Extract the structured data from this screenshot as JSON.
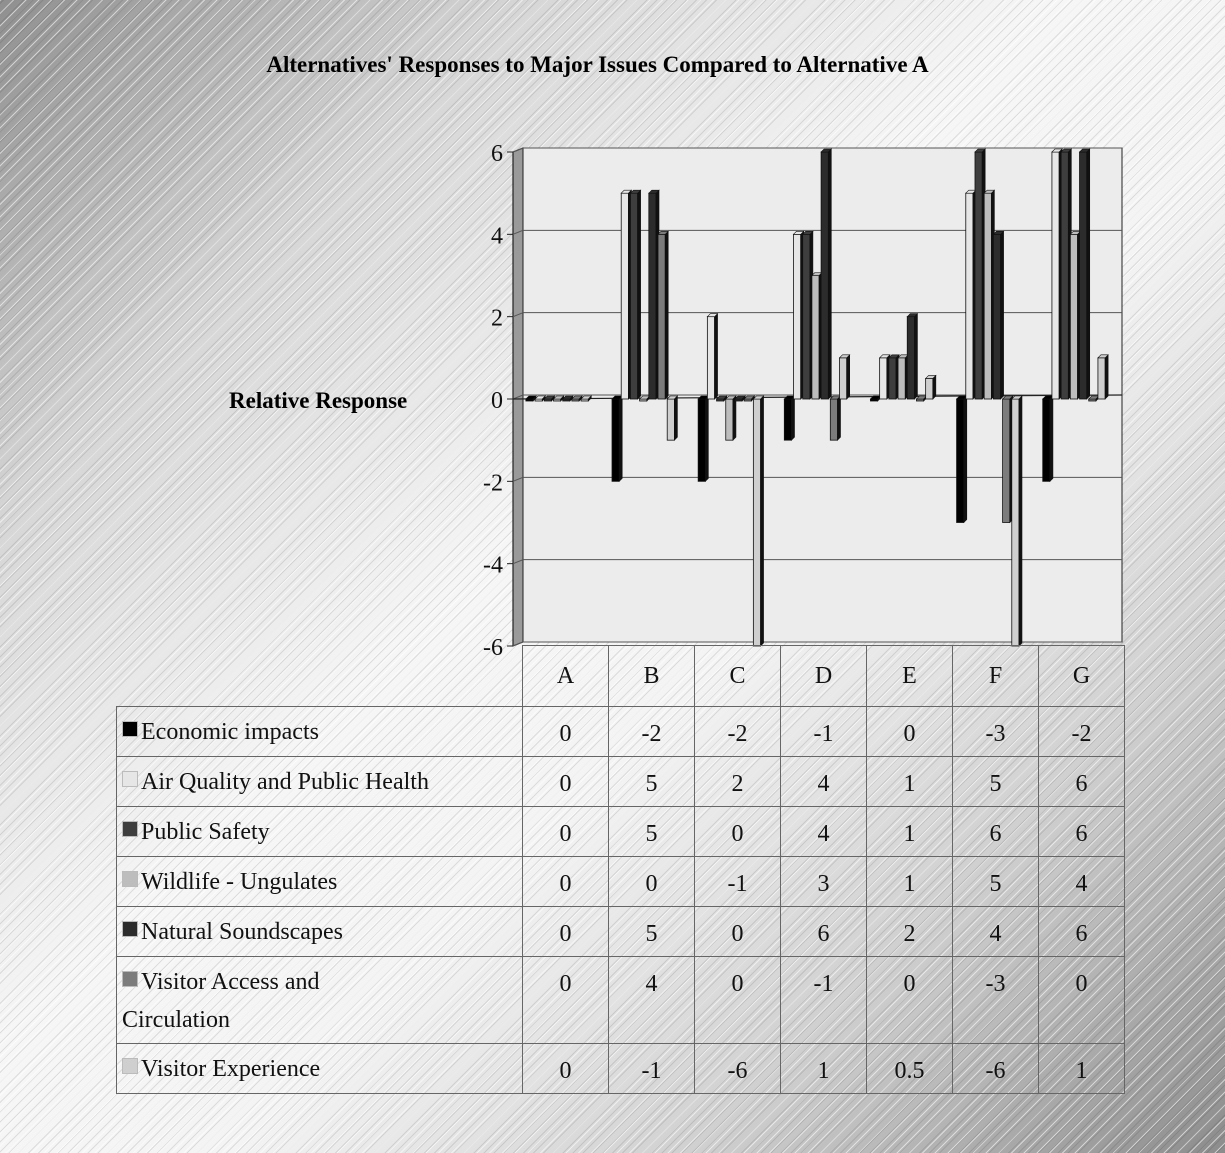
{
  "chart_data": {
    "type": "bar",
    "title": "Alternatives' Responses to Major Issues Compared to Alternative A",
    "ylabel": "Relative Response",
    "xlabel": "",
    "ylim": [
      -6,
      6
    ],
    "y_ticks": [
      "6",
      "4",
      "2",
      "0",
      "-2",
      "-4",
      "-6"
    ],
    "y_tick_values": [
      6,
      4,
      2,
      0,
      -2,
      -4,
      -6
    ],
    "grid": true,
    "legend": "data-table",
    "categories": [
      "A",
      "B",
      "C",
      "D",
      "E",
      "F",
      "G"
    ],
    "series": [
      {
        "name": "Economic impacts",
        "color": "#000000",
        "values": [
          0,
          -2,
          -2,
          -1,
          0,
          -3,
          -2
        ],
        "labels": [
          "0",
          "-2",
          "-2",
          "-1",
          "0",
          "-3",
          "-2"
        ]
      },
      {
        "name": "Air Quality and Public Health",
        "color": "#e6e6e6",
        "values": [
          0,
          5,
          2,
          4,
          1,
          5,
          6
        ],
        "labels": [
          "0",
          "5",
          "2",
          "4",
          "1",
          "5",
          "6"
        ]
      },
      {
        "name": "Public Safety",
        "color": "#3e3e3e",
        "values": [
          0,
          5,
          0,
          4,
          1,
          6,
          6
        ],
        "labels": [
          "0",
          "5",
          "0",
          "4",
          "1",
          "6",
          "6"
        ]
      },
      {
        "name": "Wildlife - Ungulates",
        "color": "#bdbdbd",
        "values": [
          0,
          0,
          -1,
          3,
          1,
          5,
          4
        ],
        "labels": [
          "0",
          "0",
          "-1",
          "3",
          "1",
          "5",
          "4"
        ]
      },
      {
        "name": "Natural Soundscapes",
        "color": "#2c2c2c",
        "values": [
          0,
          5,
          0,
          6,
          2,
          4,
          6
        ],
        "labels": [
          "0",
          "5",
          "0",
          "6",
          "2",
          "4",
          "6"
        ]
      },
      {
        "name": "Visitor Access and Circulation",
        "color": "#7c7c7c",
        "values": [
          0,
          4,
          0,
          -1,
          0,
          -3,
          0
        ],
        "labels": [
          "0",
          "4",
          "0",
          "-1",
          "0",
          "-3",
          "0"
        ]
      },
      {
        "name": "Visitor Experience",
        "color": "#cfcfcf",
        "values": [
          0,
          -1,
          -6,
          1,
          0.5,
          -6,
          1
        ],
        "labels": [
          "0",
          "-1",
          "-6",
          "1",
          "0.5",
          "-6",
          "1"
        ]
      }
    ]
  }
}
